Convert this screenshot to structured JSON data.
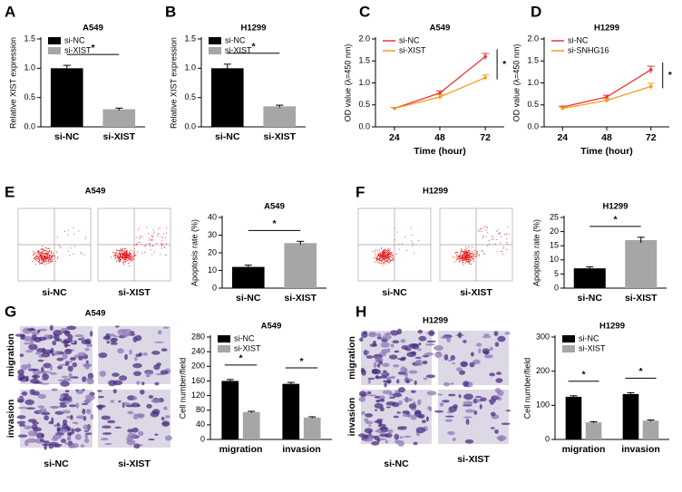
{
  "chart_data": [
    {
      "type": "bar",
      "panel": "A",
      "title": "A549",
      "ylabel": "Relative XIST expression",
      "categories": [
        "si-NC",
        "si-XIST"
      ],
      "values": [
        1.0,
        0.3
      ],
      "errors": [
        0.05,
        0.02
      ],
      "colors": [
        "#000000",
        "#a6a6a6"
      ],
      "ylim": [
        0,
        1.5
      ],
      "yticks": [
        {
          "value": 0,
          "label": "0.0"
        },
        0.5,
        {
          "value": 1,
          "label": "1.0"
        },
        1.5
      ],
      "legend": "upper left",
      "significance": "*"
    },
    {
      "type": "bar",
      "panel": "B",
      "title": "H1299",
      "ylabel": "Relative XIST expression",
      "categories": [
        "si-NC",
        "si-XIST"
      ],
      "values": [
        1.0,
        0.35
      ],
      "errors": [
        0.07,
        0.02
      ],
      "colors": [
        "#000000",
        "#a6a6a6"
      ],
      "ylim": [
        0,
        1.5
      ],
      "yticks": [
        {
          "value": 0,
          "label": "0.0"
        },
        0.5,
        {
          "value": 1,
          "label": "1.0"
        },
        1.5
      ],
      "legend": "upper left",
      "significance": "*"
    },
    {
      "type": "line",
      "panel": "C",
      "title": "A549",
      "xlabel": "Time (hour)",
      "ylabel": "OD value (λ=450 nm)",
      "x": [
        24,
        48,
        72
      ],
      "xlim": [
        14,
        82
      ],
      "xticks": [
        24,
        48,
        72
      ],
      "series": [
        {
          "name": "si-NC",
          "color": "#e8353a",
          "values": [
            0.42,
            0.77,
            1.6
          ],
          "errors": [
            0.02,
            0.05,
            0.07
          ]
        },
        {
          "name": "si-XIST",
          "color": "#f39c1d",
          "values": [
            0.42,
            0.68,
            1.12
          ],
          "errors": [
            0.02,
            0.05,
            0.06
          ]
        }
      ],
      "ylim": [
        0,
        2
      ],
      "yticks": [
        {
          "value": 0,
          "label": "0.0"
        },
        0.5,
        {
          "value": 1,
          "label": "1.0"
        },
        1.5,
        {
          "value": 2,
          "label": "2.0"
        }
      ],
      "legend": "upper left",
      "significance": "*"
    },
    {
      "type": "line",
      "panel": "D",
      "title": "H1299",
      "xlabel": "Time (hour)",
      "ylabel": "OD value (λ=450 nm)",
      "x": [
        24,
        48,
        72
      ],
      "xlim": [
        14,
        82
      ],
      "xticks": [
        24,
        48,
        72
      ],
      "series": [
        {
          "name": "si-NC",
          "color": "#e8353a",
          "values": [
            0.45,
            0.68,
            1.3
          ],
          "errors": [
            0.02,
            0.04,
            0.08
          ]
        },
        {
          "name": "si-SNHG16",
          "color": "#f39c1d",
          "values": [
            0.42,
            0.6,
            0.92
          ],
          "errors": [
            0.03,
            0.04,
            0.07
          ]
        }
      ],
      "ylim": [
        0,
        2
      ],
      "yticks": [
        {
          "value": 0,
          "label": "0.0"
        },
        0.5,
        {
          "value": 1,
          "label": "1.0"
        },
        1.5,
        {
          "value": 2,
          "label": "2.0"
        }
      ],
      "legend": "upper left",
      "significance": "*"
    },
    {
      "type": "bar",
      "panel": "E",
      "title": "A549",
      "ylabel": "Apoptosis rate (%)",
      "categories": [
        "si-NC",
        "si-XIST"
      ],
      "values": [
        12,
        25.5
      ],
      "errors": [
        1,
        1
      ],
      "colors": [
        "#000000",
        "#a6a6a6"
      ],
      "ylim": [
        0,
        40
      ],
      "yticks": [
        0,
        10,
        20,
        30,
        40
      ],
      "significance": "*"
    },
    {
      "type": "bar",
      "panel": "F",
      "title": "H1299",
      "ylabel": "Apoptosis rate (%)",
      "categories": [
        "si-NC",
        "si-XIST"
      ],
      "values": [
        7,
        17
      ],
      "errors": [
        0.5,
        1
      ],
      "colors": [
        "#000000",
        "#a6a6a6"
      ],
      "ylim": [
        0,
        25
      ],
      "yticks": [
        0,
        5,
        10,
        15,
        20,
        25
      ],
      "significance": "*"
    },
    {
      "type": "grouped_bar",
      "panel": "G",
      "title": "A549",
      "ylabel": "Cell number/field",
      "categories": [
        "migration",
        "invasion"
      ],
      "series": [
        {
          "name": "si-NC",
          "color": "#000000",
          "values": [
            160,
            152
          ],
          "errors": [
            4,
            4
          ]
        },
        {
          "name": "si-XIST",
          "color": "#a6a6a6",
          "values": [
            75,
            60
          ],
          "errors": [
            2,
            2
          ]
        }
      ],
      "ylim": [
        0,
        280
      ],
      "yticks": [
        0,
        40,
        80,
        120,
        160,
        200,
        240,
        280
      ],
      "legend": "upper left",
      "significance": [
        "*",
        "*"
      ]
    },
    {
      "type": "grouped_bar",
      "panel": "H",
      "title": "H1299",
      "ylabel": "Cell number/field",
      "categories": [
        "migration",
        "invasion"
      ],
      "series": [
        {
          "name": "si-NC",
          "color": "#000000",
          "values": [
            125,
            133
          ],
          "errors": [
            3,
            4
          ]
        },
        {
          "name": "si-XIST",
          "color": "#a6a6a6",
          "values": [
            50,
            55
          ],
          "errors": [
            2,
            2
          ]
        }
      ],
      "ylim": [
        0,
        300
      ],
      "yticks": [
        0,
        100,
        200,
        300
      ],
      "legend": "upper left",
      "significance": [
        "*",
        "*"
      ]
    }
  ],
  "image_panels": [
    {
      "kind": "flow",
      "title": "A549",
      "columns": [
        "si-NC",
        "si-XIST"
      ]
    },
    {
      "kind": "flow",
      "title": "H1299",
      "columns": [
        "si-NC",
        "si-XIST"
      ]
    },
    {
      "kind": "micrograph",
      "title": "A549",
      "columns": [
        "si-NC",
        "si-XIST"
      ],
      "rows": [
        "migration",
        "invasion"
      ]
    },
    {
      "kind": "micrograph",
      "title": "H1299",
      "columns": [
        "si-NC",
        "si-XIST"
      ],
      "rows": [
        "migration",
        "invasion"
      ]
    }
  ]
}
